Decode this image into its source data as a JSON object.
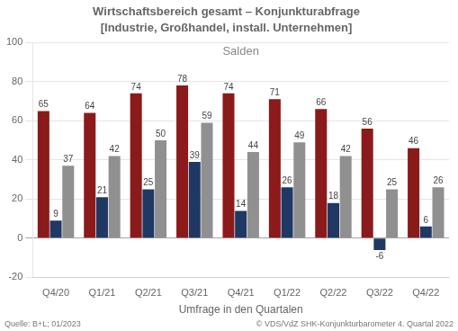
{
  "chart_data": {
    "type": "bar",
    "title": "Wirtschaftsbereich gesamt – Konjunkturabfrage",
    "subtitle": "[Industrie, Großhandel, install. Unternehmen]",
    "x_label": "Umfrage in den Quartalen",
    "annotations": [
      "Salden",
      "Quelle: B+L; 01/2023",
      "© VDS/VdZ SHK-Konjunkturbarometer 4. Quartal 2022"
    ],
    "categories": [
      "Q4/20",
      "Q1/21",
      "Q2/21",
      "Q3/21",
      "Q4/21",
      "Q1/22",
      "Q2/22",
      "Q3/22",
      "Q4/22"
    ],
    "series": [
      {
        "color": "#8B1A1A",
        "values": [
          65,
          64,
          74,
          78,
          74,
          71,
          66,
          56,
          46
        ]
      },
      {
        "color": "#1F3864",
        "values": [
          9,
          21,
          25,
          39,
          14,
          26,
          18,
          -6,
          6
        ]
      },
      {
        "color": "#909090",
        "values": [
          37,
          42,
          50,
          59,
          44,
          49,
          42,
          25,
          26
        ]
      }
    ],
    "ylim": [
      -20,
      100
    ],
    "yticks": [
      -20,
      0,
      20,
      40,
      60,
      80,
      100
    ],
    "grid": true,
    "data_labels": true
  }
}
